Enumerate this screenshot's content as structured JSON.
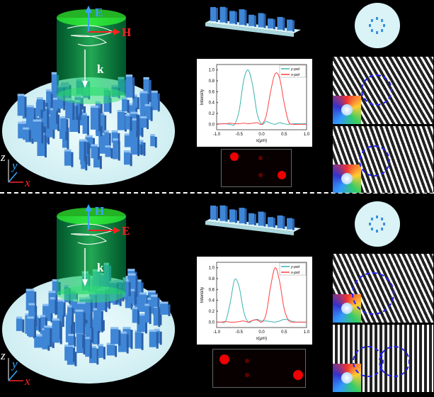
{
  "panels": [
    {
      "labels": {
        "up": "E",
        "right": "H",
        "k": "k",
        "z": "z",
        "y": "y",
        "x": "x"
      },
      "up_color": "#3aa0ff",
      "right_color": "#ff2020"
    },
    {
      "labels": {
        "up": "H",
        "right": "E",
        "k": "k",
        "z": "z",
        "y": "y",
        "x": "x"
      },
      "up_color": "#3aa0ff",
      "right_color": "#ff2020"
    }
  ],
  "colors": {
    "ypol": "#3bb3b0",
    "xpol": "#ff4040",
    "pillar": "#3f86d6",
    "disc": "#cfeef2",
    "beam": "#2fe070"
  },
  "chart_data": [
    {
      "type": "line",
      "xlabel": "x(μm)",
      "ylabel": "Intensity",
      "xlim": [
        -1,
        1
      ],
      "ylim": [
        -0.1,
        1.1
      ],
      "xticks": [
        "-1.0",
        "-0.5",
        "0.0",
        "0.5",
        "1.0"
      ],
      "yticks": [
        "0.0",
        "0.2",
        "0.4",
        "0.6",
        "0.8",
        "1.0"
      ],
      "legend": "top-right",
      "x": [
        -1,
        -0.9,
        -0.8,
        -0.7,
        -0.6,
        -0.5,
        -0.4,
        -0.3,
        -0.2,
        -0.1,
        0,
        0.1,
        0.2,
        0.3,
        0.4,
        0.5,
        0.6,
        0.7,
        0.8,
        0.9,
        1
      ],
      "series": [
        {
          "name": "y-pol",
          "values": [
            0.01,
            0.01,
            0.01,
            0,
            0,
            0.25,
            0.8,
            1.0,
            0.72,
            0.2,
            0,
            0.05,
            0.02,
            0,
            0.03,
            0.01,
            0,
            0.01,
            0.01,
            0.01,
            0.01
          ]
        },
        {
          "name": "x-pol",
          "values": [
            0,
            0.01,
            0.01,
            0.02,
            0.01,
            0.01,
            0.02,
            0.01,
            0.02,
            0.03,
            0,
            0.15,
            0.6,
            0.93,
            0.85,
            0.4,
            0.05,
            0,
            0,
            0,
            0
          ]
        }
      ]
    },
    {
      "type": "line",
      "xlabel": "x(μm)",
      "ylabel": "Intensity",
      "xlim": [
        -1,
        1
      ],
      "ylim": [
        -0.1,
        1.1
      ],
      "xticks": [
        "-1.0",
        "-0.5",
        "0.0",
        "0.5",
        "1.0"
      ],
      "yticks": [
        "0.0",
        "0.2",
        "0.4",
        "0.6",
        "0.8",
        "1.0"
      ],
      "legend": "top-right",
      "x": [
        -1,
        -0.9,
        -0.8,
        -0.7,
        -0.6,
        -0.5,
        -0.4,
        -0.3,
        -0.2,
        -0.1,
        0,
        0.1,
        0.2,
        0.3,
        0.4,
        0.5,
        0.6,
        0.7,
        0.8,
        0.9,
        1
      ],
      "series": [
        {
          "name": "y-pol",
          "values": [
            0,
            0,
            0.02,
            0.35,
            0.78,
            0.65,
            0.2,
            0,
            0.03,
            0.05,
            0.02,
            0.02,
            0.01,
            0,
            0.02,
            0.05,
            0.04,
            0.01,
            0,
            0,
            0
          ]
        },
        {
          "name": "x-pol",
          "values": [
            0,
            0,
            0.01,
            0,
            0,
            0.01,
            0.02,
            0,
            0.03,
            0.04,
            0,
            0.15,
            0.65,
            1.0,
            0.75,
            0.25,
            0.03,
            0,
            0,
            0,
            0
          ]
        }
      ]
    }
  ]
}
